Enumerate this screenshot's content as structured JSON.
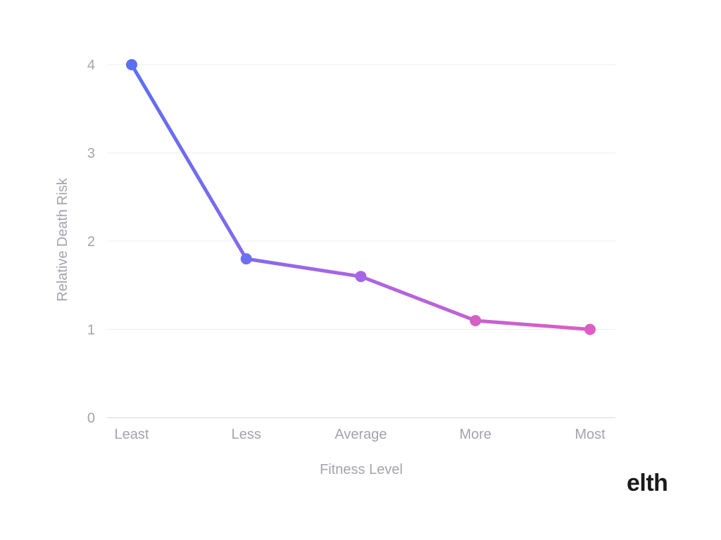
{
  "chart_data": {
    "type": "line",
    "categories": [
      "Least",
      "Less",
      "Average",
      "More",
      "Most"
    ],
    "values": [
      4.0,
      1.8,
      1.6,
      1.1,
      1.0
    ],
    "title": "",
    "xlabel": "Fitness Level",
    "ylabel": "Relative Death Risk",
    "ylim": [
      0,
      4
    ],
    "yticks": [
      "0",
      "1",
      "2",
      "3",
      "4"
    ],
    "grid": true,
    "legend": "none",
    "colors": {
      "line_start": "#5b6ff2",
      "line_mid": "#a665e6",
      "line_end": "#dc5ec2",
      "tick_text": "#a3a3ad",
      "grid": "#eceef2"
    }
  },
  "brand": {
    "logo_text": "elth"
  }
}
